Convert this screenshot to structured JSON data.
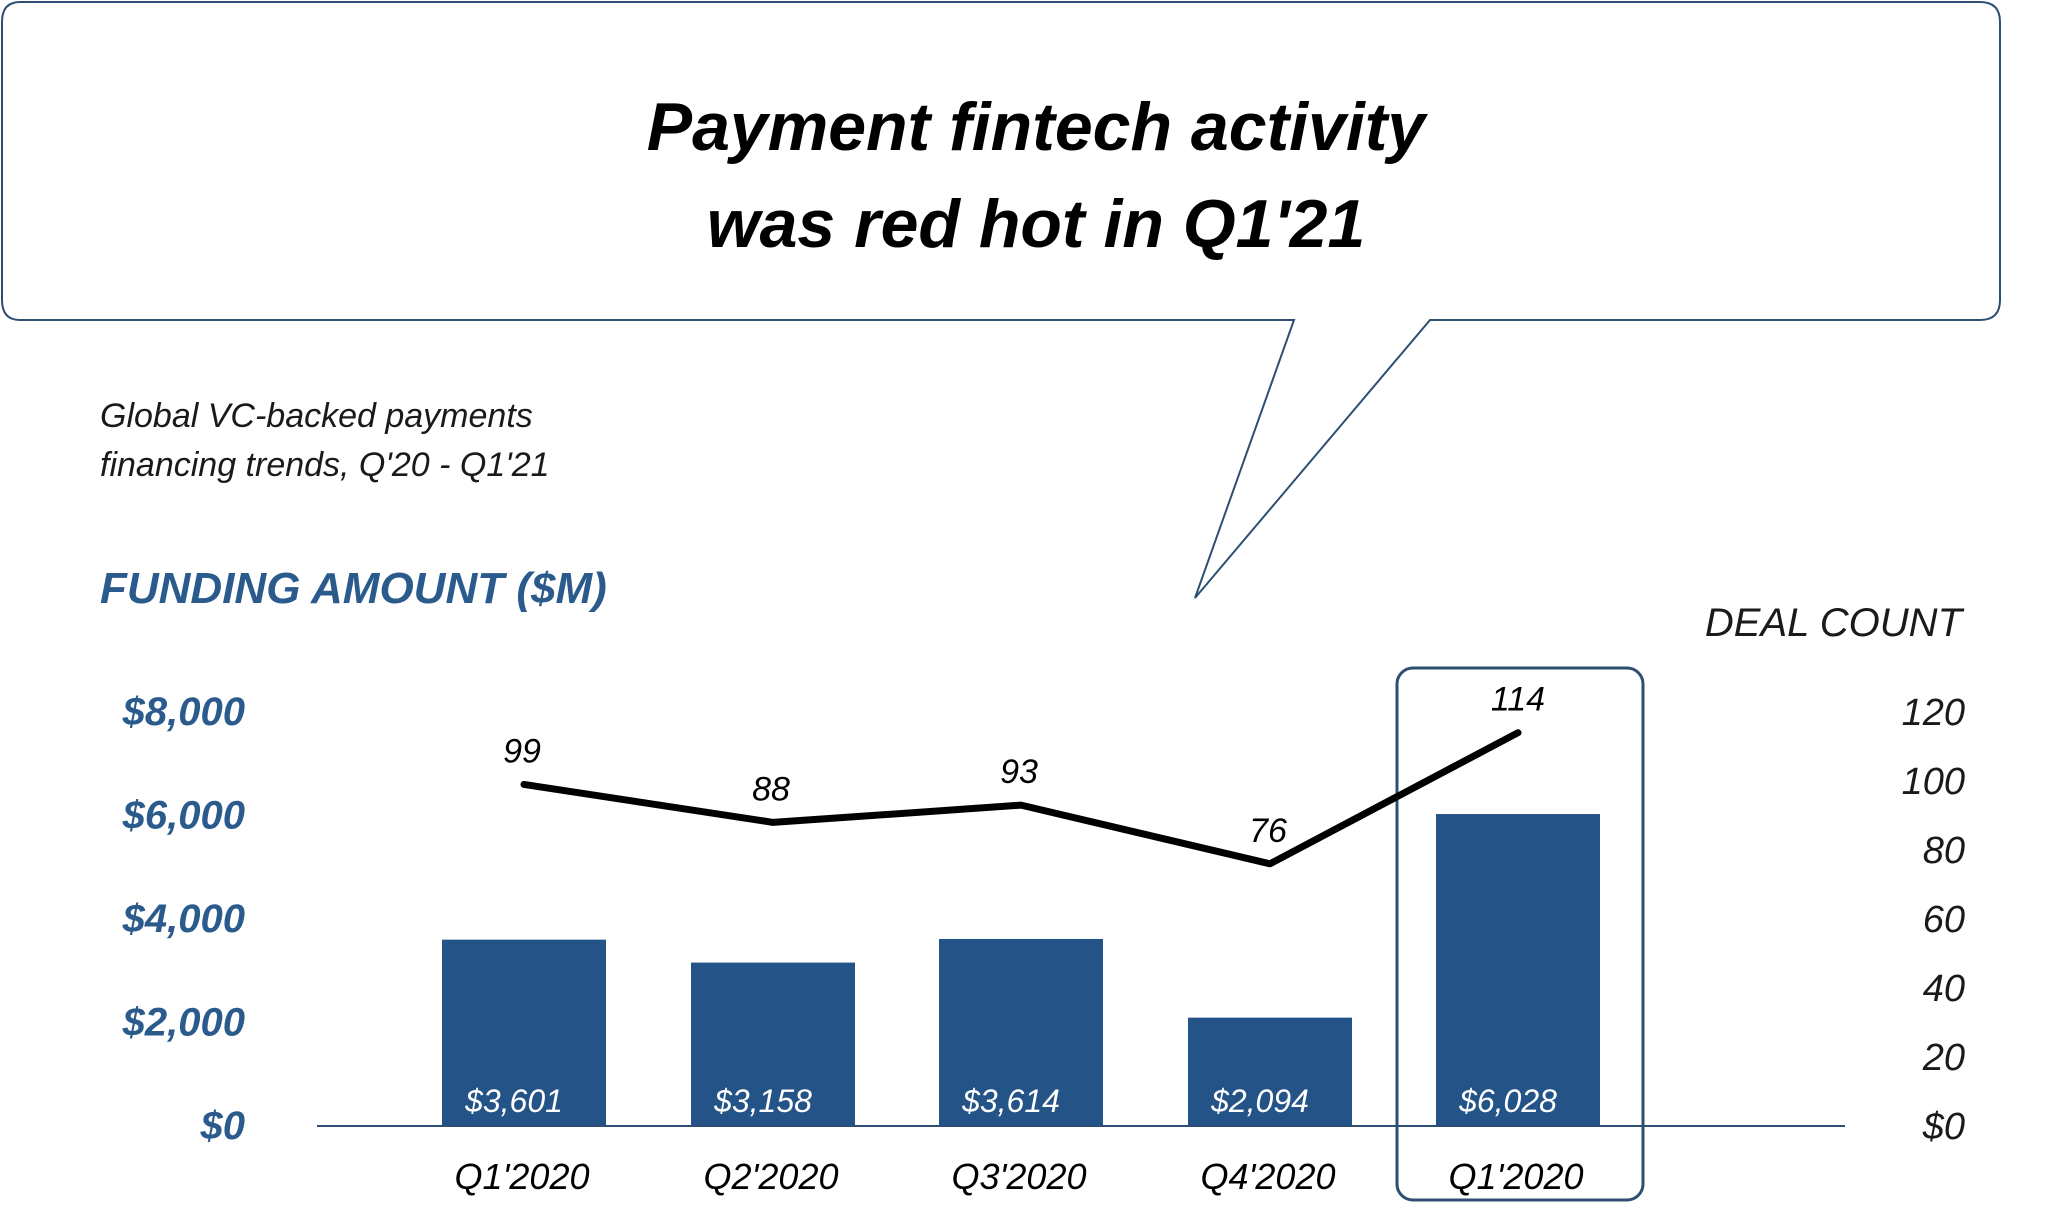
{
  "headline": {
    "line1": "Payment fintech activity",
    "line2": "was red hot in Q1'21"
  },
  "subtitle": {
    "line1": "Global VC-backed payments",
    "line2": "financing trends, Q'20 - Q1'21"
  },
  "colors": {
    "bar": "#235387",
    "axis_text": "#2b5a8c",
    "callout_border": "#2f4f72",
    "line": "#000000"
  },
  "chart_data": {
    "type": "bar",
    "categories": [
      "Q1'2020",
      "Q2'2020",
      "Q3'2020",
      "Q4'2020",
      "Q1'2020"
    ],
    "series": [
      {
        "name": "FUNDING AMOUNT ($M)",
        "type": "bar",
        "axis": "left",
        "values": [
          3601,
          3158,
          3614,
          2094,
          6028
        ],
        "labels": [
          "$3,601",
          "$3,158",
          "$3,614",
          "$2,094",
          "$6,028"
        ]
      },
      {
        "name": "DEAL COUNT",
        "type": "line",
        "axis": "right",
        "values": [
          99,
          88,
          93,
          76,
          114
        ],
        "labels": [
          "99",
          "88",
          "93",
          "76",
          "114"
        ]
      }
    ],
    "y_left": {
      "label": "FUNDING AMOUNT ($M)",
      "range": [
        0,
        8000
      ],
      "ticks": [
        {
          "value": 0,
          "label": "$0"
        },
        {
          "value": 2000,
          "label": "$2,000"
        },
        {
          "value": 4000,
          "label": "$4,000"
        },
        {
          "value": 6000,
          "label": "$6,000"
        },
        {
          "value": 8000,
          "label": "$8,000"
        }
      ]
    },
    "y_right": {
      "label": "DEAL COUNT",
      "range": [
        0,
        120
      ],
      "ticks": [
        {
          "value": 0,
          "label": "$0"
        },
        {
          "value": 20,
          "label": "20"
        },
        {
          "value": 40,
          "label": "40"
        },
        {
          "value": 60,
          "label": "60"
        },
        {
          "value": 80,
          "label": "80"
        },
        {
          "value": 100,
          "label": "100"
        },
        {
          "value": 120,
          "label": "120"
        }
      ]
    },
    "highlight_index": 4,
    "grid": false,
    "legend": "none"
  }
}
